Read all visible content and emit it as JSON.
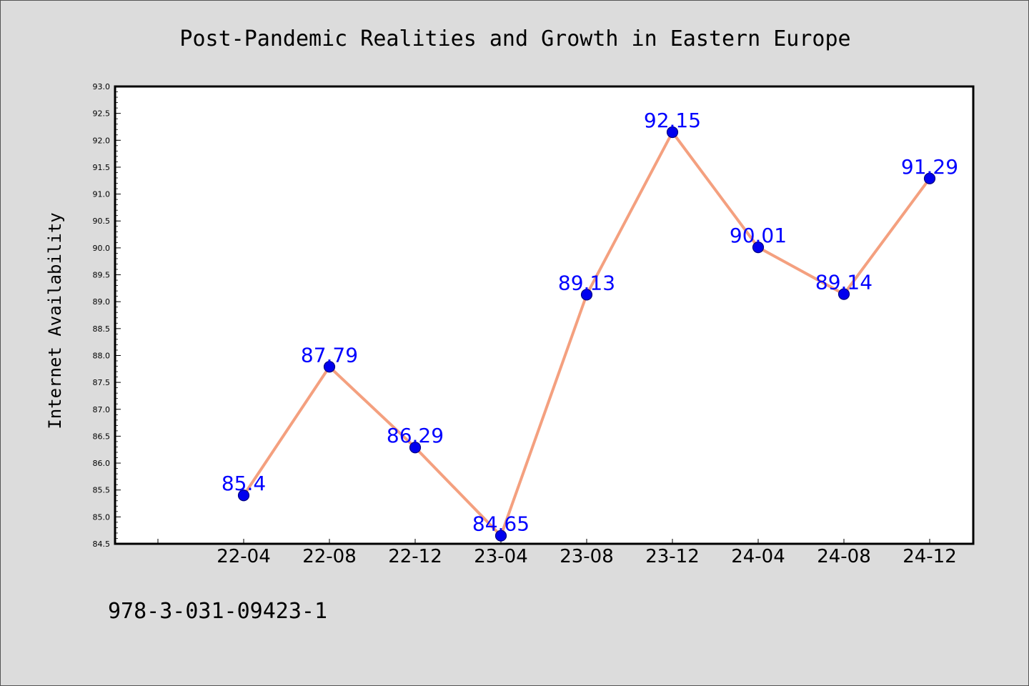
{
  "chart_data": {
    "type": "line",
    "title": "Post-Pandemic Realities and Growth in Eastern Europe",
    "xlabel": "",
    "ylabel": "Internet Availability",
    "categories": [
      "22-04",
      "22-08",
      "22-12",
      "23-04",
      "23-08",
      "23-12",
      "24-04",
      "24-08",
      "24-12"
    ],
    "values": [
      85.4,
      87.79,
      86.29,
      84.65,
      89.13,
      92.15,
      90.01,
      89.14,
      91.29
    ],
    "data_labels": [
      "85.4",
      "87.79",
      "86.29",
      "84.65",
      "89.13",
      "92.15",
      "90.01",
      "89.14",
      "91.29"
    ],
    "ylim": [
      84.5,
      93.0
    ],
    "y_ticks": [
      "84.5",
      "85.0",
      "85.5",
      "86.0",
      "86.5",
      "87.0",
      "87.5",
      "88.0",
      "88.5",
      "89.0",
      "89.5",
      "90.0",
      "90.5",
      "91.0",
      "91.5",
      "92.0",
      "92.5",
      "93.0"
    ],
    "grid": false,
    "legend": "none",
    "colors": {
      "line": "#f4a07f",
      "marker": "#0000ee",
      "marker_edge": "#000080",
      "data_label": "#0000ff",
      "background": "#dcdcdc",
      "plot_background": "#ffffff",
      "axis": "#000000"
    }
  },
  "footer": {
    "code": "978-3-031-09423-1"
  }
}
